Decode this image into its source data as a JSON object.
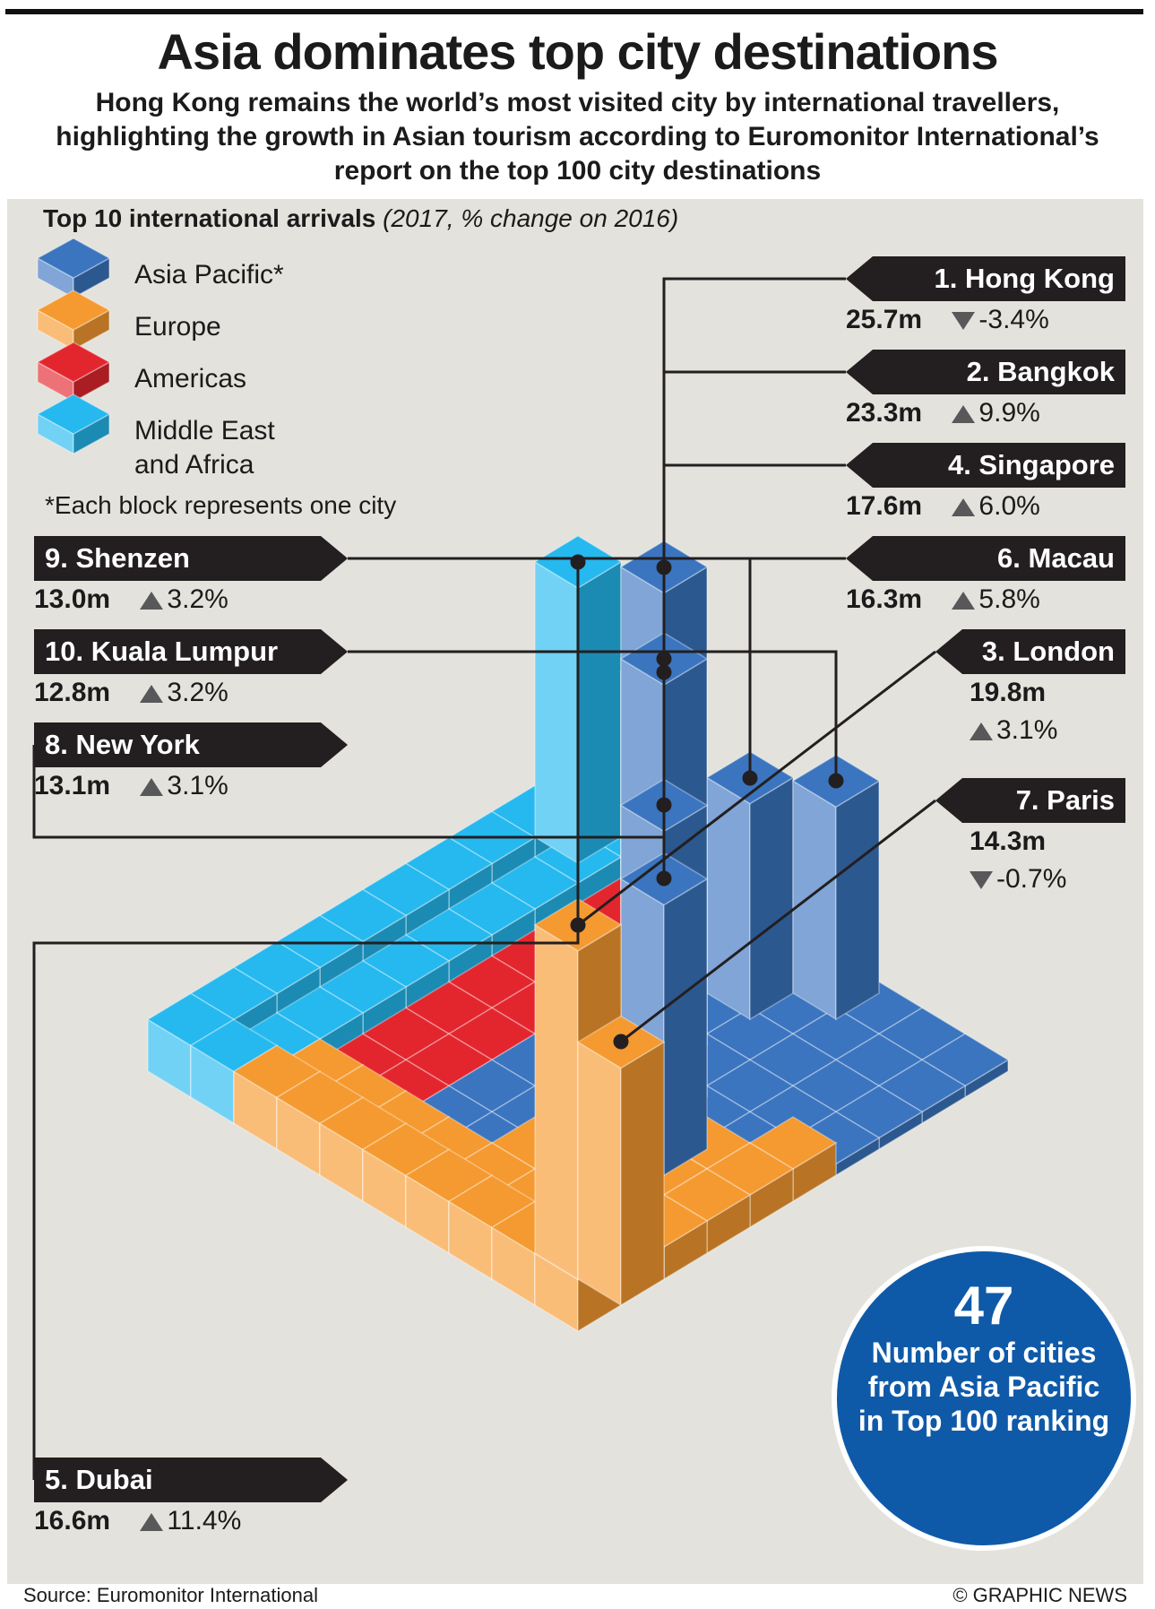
{
  "title": "Asia dominates top city destinations",
  "subtitle": "Hong Kong remains the world’s most visited city by international travellers, highlighting the growth in Asian tourism according to Euromonitor International’s report on the top 100 city destinations",
  "section_title": "Top 10 international arrivals",
  "section_subtitle": "(2017, % change on 2016)",
  "legend": [
    {
      "label": "Asia Pacific*",
      "color": "#3b75c0"
    },
    {
      "label": "Europe",
      "color": "#f59a30"
    },
    {
      "label": "Americas",
      "color": "#e3262e"
    },
    {
      "label": "Middle East and Africa",
      "color": "#25b9ef"
    }
  ],
  "legend_note": "*Each block represents one city",
  "colors": {
    "asia": "#3b75c0",
    "europe": "#f59a30",
    "americas": "#e3262e",
    "mea": "#25b9ef",
    "panel": "#e3e2dc",
    "label_bg": "#231f20"
  },
  "chart_data": {
    "type": "bar",
    "title": "Top 10 international arrivals",
    "unit": "m",
    "categories": [
      "Hong Kong",
      "Bangkok",
      "London",
      "Singapore",
      "Macau",
      "Dubai",
      "Paris",
      "New York",
      "Shenzen",
      "Kuala Lumpur"
    ],
    "series": [
      {
        "name": "arrivals",
        "values": [
          25.7,
          23.3,
          19.8,
          17.6,
          16.3,
          16.6,
          14.3,
          13.1,
          13.0,
          12.8
        ]
      },
      {
        "name": "change",
        "values": [
          -3.4,
          9.9,
          3.1,
          6.0,
          5.8,
          11.4,
          -0.7,
          3.1,
          3.2,
          3.2
        ]
      }
    ],
    "regions": [
      "Asia Pacific",
      "Asia Pacific",
      "Europe",
      "Asia Pacific",
      "Asia Pacific",
      "Middle East and Africa",
      "Europe",
      "Americas",
      "Asia Pacific",
      "Asia Pacific"
    ],
    "asia_pacific_blocks": 47
  },
  "cities": [
    {
      "label": "1. Hong Kong",
      "value": "25.7m",
      "change": "-3.4%",
      "dir": "down"
    },
    {
      "label": "2. Bangkok",
      "value": "23.3m",
      "change": "9.9%",
      "dir": "up"
    },
    {
      "label": "4. Singapore",
      "value": "17.6m",
      "change": "6.0%",
      "dir": "up"
    },
    {
      "label": "6. Macau",
      "value": "16.3m",
      "change": "5.8%",
      "dir": "up"
    },
    {
      "label": "3. London",
      "value": "19.8m",
      "change": "3.1%",
      "dir": "up"
    },
    {
      "label": "7. Paris",
      "value": "14.3m",
      "change": "-0.7%",
      "dir": "down"
    },
    {
      "label": "9. Shenzen",
      "value": "13.0m",
      "change": "3.2%",
      "dir": "up"
    },
    {
      "label": "10. Kuala Lumpur",
      "value": "12.8m",
      "change": "3.2%",
      "dir": "up"
    },
    {
      "label": "8. New York",
      "value": "13.1m",
      "change": "3.1%",
      "dir": "up"
    },
    {
      "label": "5. Dubai",
      "value": "16.6m",
      "change": "11.4%",
      "dir": "up"
    }
  ],
  "callout": {
    "number": "47",
    "text": "Number of cities from Asia Pacific in Top 100 ranking"
  },
  "source": "Source: Euromonitor International",
  "credit": "© GRAPHIC NEWS"
}
